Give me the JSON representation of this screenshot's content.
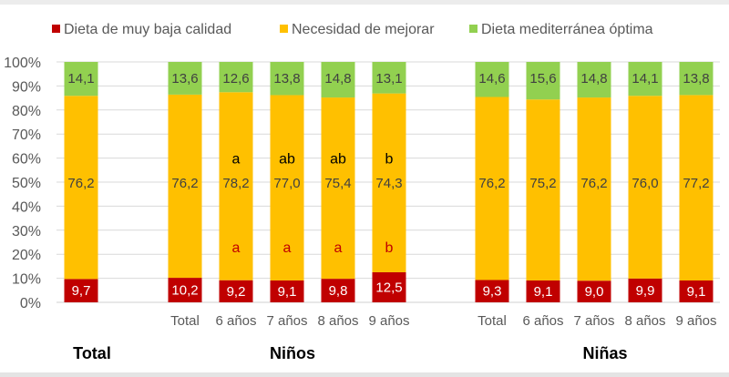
{
  "chart_data": {
    "type": "bar",
    "stacked": true,
    "percent_stacked": true,
    "title": "",
    "xlabel": "",
    "ylabel": "",
    "ylim": [
      0,
      100
    ],
    "grid": true,
    "legend_position": "top",
    "y_ticks": [
      "0%",
      "10%",
      "20%",
      "30%",
      "40%",
      "50%",
      "60%",
      "70%",
      "80%",
      "90%",
      "100%"
    ],
    "groups": [
      {
        "name": "Total",
        "categories": [
          ""
        ]
      },
      {
        "name": "Niños",
        "categories": [
          "Total",
          "6 años",
          "7 años",
          "8 años",
          "9 años"
        ]
      },
      {
        "name": "Niñas",
        "categories": [
          "Total",
          "6 años",
          "7 años",
          "8 años",
          "9 años"
        ]
      }
    ],
    "categories": [
      "",
      "Total",
      "6 años",
      "7 años",
      "8 años",
      "9 años",
      "Total",
      "6 años",
      "7 años",
      "8 años",
      "9 años"
    ],
    "series": [
      {
        "name": "Dieta de muy baja calidad",
        "color": "#c00000",
        "label_color": "#ffffff",
        "values": [
          9.7,
          10.2,
          9.2,
          9.1,
          9.8,
          12.5,
          9.3,
          9.1,
          9.0,
          9.9,
          9.1
        ],
        "labels": [
          "9,7",
          "10,2",
          "9,2",
          "9,1",
          "9,8",
          "12,5",
          "9,3",
          "9,1",
          "9,0",
          "9,9",
          "9,1"
        ]
      },
      {
        "name": "Necesidad de mejorar",
        "color": "#ffc000",
        "label_color": "#404040",
        "values": [
          76.2,
          76.2,
          78.2,
          77.0,
          75.4,
          74.3,
          76.2,
          75.2,
          76.2,
          76.0,
          77.2
        ],
        "labels": [
          "76,2",
          "76,2",
          "78,2",
          "77,0",
          "75,4",
          "74,3",
          "76,2",
          "75,2",
          "76,2",
          "76,0",
          "77,2"
        ]
      },
      {
        "name": "Dieta mediterránea óptima",
        "color": "#92d050",
        "label_color": "#404040",
        "values": [
          14.1,
          13.6,
          12.6,
          13.8,
          14.8,
          13.1,
          14.6,
          15.6,
          14.8,
          14.1,
          13.8
        ],
        "labels": [
          "14,1",
          "13,6",
          "12,6",
          "13,8",
          "14,8",
          "13,1",
          "14,6",
          "15,6",
          "14,8",
          "14,1",
          "13,8"
        ]
      }
    ],
    "annotations": {
      "significance_necesidad": {
        "color": "#000000",
        "labels": [
          "",
          "",
          "a",
          "ab",
          "ab",
          "b",
          "",
          "",
          "",
          "",
          ""
        ]
      },
      "significance_baja": {
        "color": "#c00000",
        "labels": [
          "",
          "",
          "a",
          "a",
          "a",
          "b",
          "",
          "",
          "",
          "",
          ""
        ]
      }
    }
  }
}
